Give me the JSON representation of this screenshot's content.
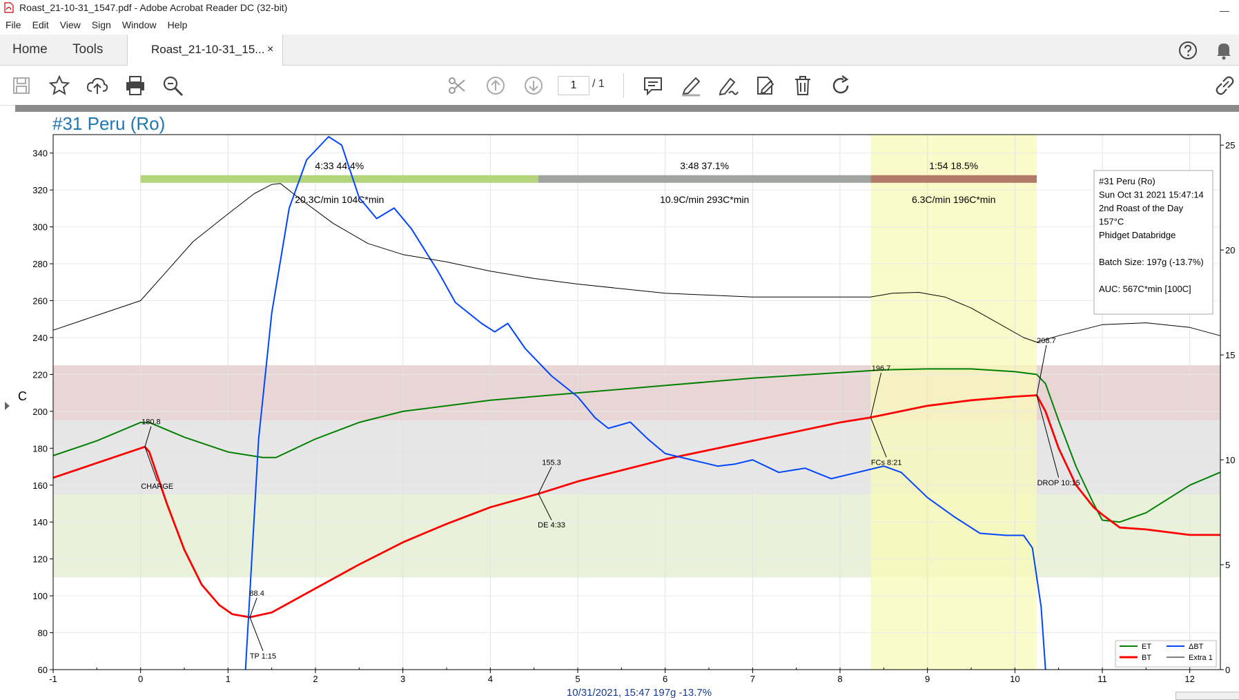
{
  "window": {
    "title": "Roast_21-10-31_1547.pdf - Adobe Acrobat Reader DC (32-bit)"
  },
  "menu": [
    "File",
    "Edit",
    "View",
    "Sign",
    "Window",
    "Help"
  ],
  "tabs": {
    "home": "Home",
    "tools": "Tools",
    "document": "Roast_21-10-31_15...",
    "close_symbol": "×"
  },
  "toolbar": {
    "page_current": "1",
    "page_total": "/ 1"
  },
  "colors": {
    "et": "#008000",
    "bt": "#ff0000",
    "delta_bt": "#0044ff",
    "extra1": "#000000",
    "title": "#1f77b4"
  },
  "chart_data": {
    "type": "line",
    "title": "#31 Peru (Ro)",
    "ylabel": "C",
    "x_range": [
      -1,
      12.35
    ],
    "y_range": [
      60,
      350
    ],
    "y2_range": [
      0,
      25.5
    ],
    "x_ticks": [
      "-1",
      "0",
      "1",
      "2",
      "3",
      "4",
      "5",
      "6",
      "7",
      "8",
      "9",
      "10",
      "11",
      "12"
    ],
    "y_ticks": [
      "60",
      "80",
      "100",
      "120",
      "140",
      "160",
      "180",
      "200",
      "220",
      "240",
      "260",
      "280",
      "300",
      "320",
      "340"
    ],
    "y2_ticks": [
      "0",
      "5",
      "10",
      "15",
      "20",
      "25"
    ],
    "bands": [
      {
        "from": 195,
        "to": 225,
        "color": "#e8d6d6"
      },
      {
        "from": 155,
        "to": 195,
        "color": "#e6e6e6"
      },
      {
        "from": 110,
        "to": 155,
        "color": "#eaf1da"
      }
    ],
    "highlight_x": [
      8.35,
      10.25
    ],
    "phases": [
      {
        "from": 0,
        "to": 4.55,
        "color": "#b3d47a",
        "label": "4:33  44.4%",
        "rate": "20.3C/min  104C*min"
      },
      {
        "from": 4.55,
        "to": 8.35,
        "color": "#a0a4a0",
        "label": "3:48  37.1%",
        "rate": "10.9C/min  293C*min"
      },
      {
        "from": 8.35,
        "to": 10.25,
        "color": "#b27a68",
        "label": "1:54  18.5%",
        "rate": "6.3C/min  196C*min"
      }
    ],
    "series": [
      {
        "name": "ET",
        "points": [
          [
            -1,
            176
          ],
          [
            -0.5,
            184
          ],
          [
            0,
            194
          ],
          [
            0.1,
            194
          ],
          [
            0.5,
            186
          ],
          [
            1,
            178
          ],
          [
            1.4,
            175
          ],
          [
            1.55,
            175
          ],
          [
            2,
            185
          ],
          [
            2.5,
            194
          ],
          [
            3,
            200
          ],
          [
            4,
            206
          ],
          [
            5,
            210
          ],
          [
            6,
            214
          ],
          [
            7,
            218
          ],
          [
            8,
            221
          ],
          [
            8.5,
            222.5
          ],
          [
            9,
            223
          ],
          [
            9.5,
            223
          ],
          [
            10,
            221.5
          ],
          [
            10.25,
            220
          ],
          [
            10.35,
            215
          ],
          [
            10.5,
            195
          ],
          [
            10.7,
            170
          ],
          [
            10.9,
            150
          ],
          [
            11,
            141
          ],
          [
            11.2,
            140
          ],
          [
            11.5,
            145
          ],
          [
            12,
            160
          ],
          [
            12.35,
            167
          ]
        ]
      },
      {
        "name": "BT",
        "points": [
          [
            -1,
            164
          ],
          [
            -0.5,
            172
          ],
          [
            0,
            180
          ],
          [
            0.05,
            180.8
          ],
          [
            0.1,
            178
          ],
          [
            0.3,
            150
          ],
          [
            0.5,
            125
          ],
          [
            0.7,
            106
          ],
          [
            0.9,
            95
          ],
          [
            1.05,
            90
          ],
          [
            1.25,
            88.4
          ],
          [
            1.5,
            91
          ],
          [
            2,
            104
          ],
          [
            2.5,
            117
          ],
          [
            3,
            129
          ],
          [
            3.5,
            139
          ],
          [
            4,
            148
          ],
          [
            4.55,
            155.3
          ],
          [
            5,
            162
          ],
          [
            6,
            174
          ],
          [
            7,
            184
          ],
          [
            8,
            194
          ],
          [
            8.35,
            196.7
          ],
          [
            9,
            203
          ],
          [
            9.5,
            206
          ],
          [
            10,
            208
          ],
          [
            10.25,
            208.7
          ],
          [
            10.35,
            200
          ],
          [
            10.5,
            180
          ],
          [
            10.7,
            160
          ],
          [
            10.9,
            148
          ],
          [
            11,
            144
          ],
          [
            11.2,
            137
          ],
          [
            11.5,
            136
          ],
          [
            12,
            133
          ],
          [
            12.35,
            133
          ]
        ]
      },
      {
        "name": "ΔBT",
        "points": [
          [
            1.2,
            0
          ],
          [
            1.35,
            11
          ],
          [
            1.5,
            17
          ],
          [
            1.7,
            22
          ],
          [
            1.9,
            24.3
          ],
          [
            2.15,
            25.4
          ],
          [
            2.3,
            25
          ],
          [
            2.5,
            22.5
          ],
          [
            2.7,
            21.5
          ],
          [
            2.9,
            22
          ],
          [
            3.1,
            21
          ],
          [
            3.4,
            19
          ],
          [
            3.6,
            17.5
          ],
          [
            3.9,
            16.5
          ],
          [
            4.05,
            16.1
          ],
          [
            4.2,
            16.5
          ],
          [
            4.4,
            15.3
          ],
          [
            4.7,
            14
          ],
          [
            5,
            13
          ],
          [
            5.2,
            12
          ],
          [
            5.35,
            11.5
          ],
          [
            5.6,
            11.8
          ],
          [
            5.8,
            11
          ],
          [
            6,
            10.3
          ],
          [
            6.3,
            10
          ],
          [
            6.6,
            9.7
          ],
          [
            6.8,
            9.8
          ],
          [
            7,
            10
          ],
          [
            7.3,
            9.4
          ],
          [
            7.6,
            9.6
          ],
          [
            7.9,
            9.1
          ],
          [
            8.2,
            9.4
          ],
          [
            8.5,
            9.7
          ],
          [
            8.7,
            9.4
          ],
          [
            9,
            8.2
          ],
          [
            9.3,
            7.3
          ],
          [
            9.6,
            6.5
          ],
          [
            9.9,
            6.4
          ],
          [
            10.1,
            6.4
          ],
          [
            10.2,
            5.8
          ],
          [
            10.3,
            3
          ],
          [
            10.35,
            0
          ]
        ]
      },
      {
        "name": "Extra 1",
        "points": [
          [
            -1,
            244
          ],
          [
            -0.5,
            252
          ],
          [
            0,
            260
          ],
          [
            0.3,
            276
          ],
          [
            0.6,
            292
          ],
          [
            1,
            307
          ],
          [
            1.3,
            318
          ],
          [
            1.5,
            323
          ],
          [
            1.6,
            323.5
          ],
          [
            1.8,
            316
          ],
          [
            2.2,
            302
          ],
          [
            2.6,
            291
          ],
          [
            3,
            285
          ],
          [
            3.5,
            281
          ],
          [
            4,
            276
          ],
          [
            4.5,
            272
          ],
          [
            5,
            269
          ],
          [
            6,
            264
          ],
          [
            7,
            262
          ],
          [
            8,
            262
          ],
          [
            8.35,
            262
          ],
          [
            8.6,
            264
          ],
          [
            8.9,
            264.5
          ],
          [
            9.2,
            262
          ],
          [
            9.5,
            256
          ],
          [
            9.8,
            248
          ],
          [
            10.1,
            240
          ],
          [
            10.25,
            237.5
          ],
          [
            10.5,
            241
          ],
          [
            11,
            247
          ],
          [
            11.5,
            248
          ],
          [
            12,
            245.5
          ],
          [
            12.35,
            241
          ]
        ]
      }
    ],
    "annotations": [
      {
        "text": "180.8",
        "anchor": [
          0.05,
          180.8
        ],
        "label_at": [
          0.12,
          193
        ]
      },
      {
        "text": "CHARGE",
        "anchor": [
          0.05,
          180.8
        ],
        "label_at": [
          0.19,
          158
        ]
      },
      {
        "text": "88.4",
        "anchor": [
          1.25,
          88.4
        ],
        "label_at": [
          1.33,
          100
        ]
      },
      {
        "text": "TP 1:15",
        "anchor": [
          1.25,
          88.4
        ],
        "label_at": [
          1.4,
          66
        ]
      },
      {
        "text": "155.3",
        "anchor": [
          4.55,
          155.3
        ],
        "label_at": [
          4.7,
          171
        ]
      },
      {
        "text": "DE 4:33",
        "anchor": [
          4.55,
          155.3
        ],
        "label_at": [
          4.7,
          137
        ]
      },
      {
        "text": "196.7",
        "anchor": [
          8.35,
          196.7
        ],
        "label_at": [
          8.47,
          222
        ]
      },
      {
        "text": "FCs 8:21",
        "anchor": [
          8.35,
          196.7
        ],
        "label_at": [
          8.53,
          171
        ]
      },
      {
        "text": "208.7",
        "anchor": [
          10.25,
          208.7
        ],
        "label_at": [
          10.36,
          237
        ]
      },
      {
        "text": "DROP 10:15",
        "anchor": [
          10.25,
          208.7
        ],
        "label_at": [
          10.5,
          160
        ]
      }
    ],
    "info_box": [
      "#31 Peru (Ro)",
      "Sun Oct 31 2021 15:47:14",
      "2nd Roast of the Day",
      "157°C",
      "Phidget Databridge",
      "",
      "Batch Size: 197g (-13.7%)",
      "",
      "AUC: 567C*min [100C]"
    ],
    "legend": {
      "placement": "bottom-right",
      "items": [
        "ET",
        "BT",
        "ΔBT",
        "Extra 1"
      ]
    },
    "footer": "10/31/2021, 15:47    197g    -13.7%"
  }
}
